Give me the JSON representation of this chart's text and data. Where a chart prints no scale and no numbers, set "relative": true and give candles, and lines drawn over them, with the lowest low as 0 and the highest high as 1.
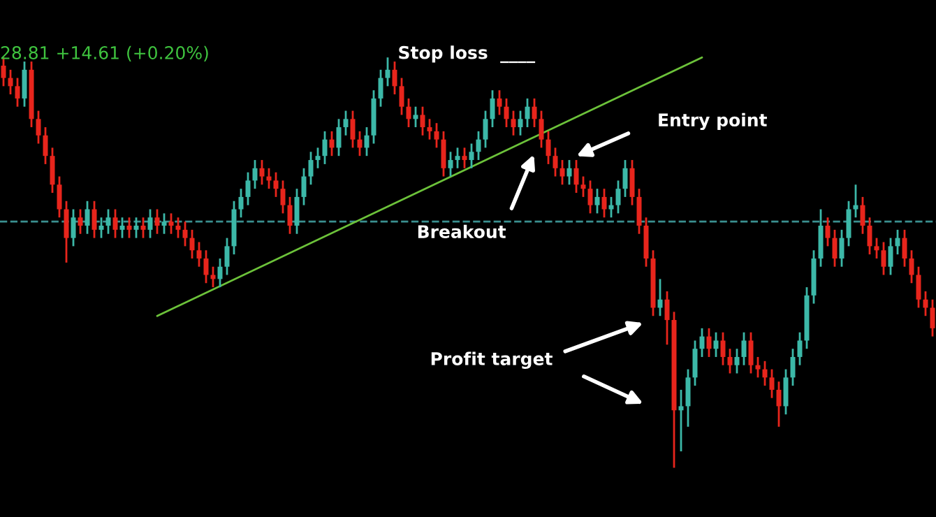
{
  "chart_data": {
    "type": "candlestick",
    "relative": true,
    "categories": [
      null,
      null,
      null,
      null,
      null,
      null,
      null,
      null,
      null,
      null,
      null,
      null,
      null,
      null,
      null,
      null,
      null,
      null,
      null,
      null,
      null,
      null,
      null,
      null,
      null,
      null,
      null,
      null,
      null,
      null,
      null,
      null,
      null,
      null,
      null,
      null,
      null,
      null,
      null,
      null,
      null,
      null,
      null,
      null,
      null,
      null,
      null,
      null,
      null,
      null,
      null,
      null,
      null,
      null,
      null,
      null,
      null,
      null,
      null,
      null,
      null,
      null,
      null,
      null,
      null,
      null,
      null,
      null,
      null,
      null,
      null,
      null,
      null,
      null,
      null,
      null,
      null,
      null,
      null,
      null,
      null,
      null,
      null,
      null,
      null,
      null,
      null,
      null,
      null,
      null,
      null,
      null,
      null,
      null,
      null,
      null,
      null,
      null,
      null,
      null,
      null,
      null,
      null,
      null,
      null,
      null,
      null,
      null,
      null,
      null,
      null,
      null,
      null,
      null,
      null,
      null,
      null,
      null,
      null,
      null,
      null,
      null,
      null,
      null,
      null,
      null,
      null,
      null,
      null,
      null,
      null,
      null,
      null,
      null
    ],
    "colors": [
      "#e8251c",
      "#e8251c",
      "#e8251c",
      "#3cb8a8",
      "#e8251c",
      "#e8251c",
      "#e8251c",
      "#e8251c",
      "#e8251c",
      "#e8251c",
      "#3cb8a8",
      "#e8251c",
      "#3cb8a8",
      "#e8251c",
      "#3cb8a8",
      "#3cb8a8",
      "#e8251c",
      "#3cb8a8",
      "#e8251c",
      "#3cb8a8",
      "#e8251c",
      "#3cb8a8",
      "#e8251c",
      "#3cb8a8",
      "#e8251c",
      "#e8251c",
      "#e8251c",
      "#e8251c",
      "#e8251c",
      "#e8251c",
      "#e8251c",
      "#3cb8a8",
      "#3cb8a8",
      "#3cb8a8",
      "#3cb8a8",
      "#3cb8a8",
      "#3cb8a8",
      "#e8251c",
      "#e8251c",
      "#e8251c",
      "#e8251c",
      "#e8251c",
      "#3cb8a8",
      "#3cb8a8",
      "#3cb8a8",
      "#3cb8a8",
      "#3cb8a8",
      "#e8251c",
      "#3cb8a8",
      "#3cb8a8",
      "#e8251c",
      "#e8251c",
      "#3cb8a8",
      "#3cb8a8",
      "#3cb8a8",
      "#3cb8a8",
      "#e8251c",
      "#e8251c",
      "#e8251c",
      "#3cb8a8",
      "#e8251c",
      "#e8251c",
      "#e8251c",
      "#e8251c",
      "#3cb8a8",
      "#3cb8a8",
      "#e8251c",
      "#3cb8a8",
      "#3cb8a8",
      "#3cb8a8",
      "#3cb8a8",
      "#e8251c",
      "#e8251c",
      "#e8251c",
      "#3cb8a8",
      "#3cb8a8",
      "#e8251c",
      "#e8251c",
      "#e8251c",
      "#e8251c",
      "#e8251c",
      "#3cb8a8",
      "#e8251c",
      "#e8251c",
      "#e8251c",
      "#3cb8a8",
      "#e8251c",
      "#3cb8a8",
      "#3cb8a8",
      "#3cb8a8",
      "#e8251c",
      "#e8251c",
      "#e8251c",
      "#e8251c",
      "#3cb8a8",
      "#e8251c",
      "#e8251c",
      "#3cb8a8",
      "#3cb8a8",
      "#3cb8a8",
      "#3cb8a8",
      "#e8251c",
      "#3cb8a8",
      "#e8251c",
      "#e8251c",
      "#3cb8a8",
      "#3cb8a8",
      "#e8251c",
      "#e8251c",
      "#e8251c",
      "#e8251c",
      "#e8251c",
      "#3cb8a8",
      "#3cb8a8",
      "#3cb8a8",
      "#3cb8a8",
      "#3cb8a8",
      "#3cb8a8",
      "#e8251c",
      "#e8251c",
      "#3cb8a8",
      "#3cb8a8",
      "#3cb8a8",
      "#e8251c",
      "#e8251c",
      "#e8251c",
      "#e8251c",
      "#3cb8a8",
      "#3cb8a8",
      "#e8251c",
      "#e8251c",
      "#e8251c",
      "#e8251c",
      "#e8251c"
    ],
    "ohlc": [
      [
        0.98,
        1.0,
        0.93,
        0.95
      ],
      [
        0.95,
        0.97,
        0.91,
        0.93
      ],
      [
        0.93,
        0.95,
        0.88,
        0.9
      ],
      [
        0.9,
        0.99,
        0.88,
        0.97
      ],
      [
        0.97,
        0.99,
        0.83,
        0.85
      ],
      [
        0.85,
        0.87,
        0.79,
        0.81
      ],
      [
        0.81,
        0.83,
        0.74,
        0.76
      ],
      [
        0.76,
        0.78,
        0.67,
        0.69
      ],
      [
        0.69,
        0.71,
        0.61,
        0.63
      ],
      [
        0.63,
        0.65,
        0.5,
        0.56
      ],
      [
        0.56,
        0.63,
        0.54,
        0.61
      ],
      [
        0.61,
        0.63,
        0.57,
        0.59
      ],
      [
        0.59,
        0.65,
        0.57,
        0.63
      ],
      [
        0.63,
        0.65,
        0.56,
        0.58
      ],
      [
        0.58,
        0.61,
        0.56,
        0.59
      ],
      [
        0.59,
        0.63,
        0.57,
        0.61
      ],
      [
        0.61,
        0.63,
        0.56,
        0.58
      ],
      [
        0.58,
        0.61,
        0.56,
        0.59
      ],
      [
        0.59,
        0.61,
        0.56,
        0.58
      ],
      [
        0.58,
        0.61,
        0.56,
        0.59
      ],
      [
        0.59,
        0.61,
        0.56,
        0.58
      ],
      [
        0.58,
        0.63,
        0.56,
        0.61
      ],
      [
        0.61,
        0.63,
        0.57,
        0.59
      ],
      [
        0.59,
        0.62,
        0.57,
        0.6
      ],
      [
        0.6,
        0.62,
        0.57,
        0.59
      ],
      [
        0.59,
        0.61,
        0.56,
        0.58
      ],
      [
        0.58,
        0.6,
        0.54,
        0.56
      ],
      [
        0.56,
        0.58,
        0.51,
        0.53
      ],
      [
        0.53,
        0.55,
        0.49,
        0.51
      ],
      [
        0.51,
        0.53,
        0.45,
        0.47
      ],
      [
        0.47,
        0.49,
        0.44,
        0.46
      ],
      [
        0.46,
        0.51,
        0.44,
        0.49
      ],
      [
        0.49,
        0.56,
        0.47,
        0.54
      ],
      [
        0.54,
        0.65,
        0.52,
        0.63
      ],
      [
        0.63,
        0.68,
        0.61,
        0.66
      ],
      [
        0.66,
        0.72,
        0.64,
        0.7
      ],
      [
        0.7,
        0.75,
        0.68,
        0.73
      ],
      [
        0.73,
        0.75,
        0.69,
        0.71
      ],
      [
        0.71,
        0.73,
        0.68,
        0.7
      ],
      [
        0.7,
        0.72,
        0.66,
        0.68
      ],
      [
        0.68,
        0.7,
        0.62,
        0.64
      ],
      [
        0.64,
        0.66,
        0.57,
        0.59
      ],
      [
        0.59,
        0.68,
        0.57,
        0.66
      ],
      [
        0.66,
        0.73,
        0.64,
        0.71
      ],
      [
        0.71,
        0.77,
        0.69,
        0.75
      ],
      [
        0.75,
        0.78,
        0.73,
        0.76
      ],
      [
        0.76,
        0.82,
        0.74,
        0.8
      ],
      [
        0.8,
        0.82,
        0.76,
        0.78
      ],
      [
        0.78,
        0.85,
        0.76,
        0.83
      ],
      [
        0.83,
        0.87,
        0.81,
        0.85
      ],
      [
        0.85,
        0.87,
        0.78,
        0.8
      ],
      [
        0.8,
        0.82,
        0.76,
        0.78
      ],
      [
        0.78,
        0.83,
        0.76,
        0.81
      ],
      [
        0.81,
        0.92,
        0.79,
        0.9
      ],
      [
        0.9,
        0.97,
        0.88,
        0.95
      ],
      [
        0.95,
        1.0,
        0.93,
        0.97
      ],
      [
        0.97,
        0.99,
        0.91,
        0.93
      ],
      [
        0.93,
        0.95,
        0.86,
        0.88
      ],
      [
        0.88,
        0.9,
        0.83,
        0.85
      ],
      [
        0.85,
        0.88,
        0.83,
        0.86
      ],
      [
        0.86,
        0.88,
        0.81,
        0.83
      ],
      [
        0.83,
        0.85,
        0.8,
        0.82
      ],
      [
        0.82,
        0.84,
        0.78,
        0.8
      ],
      [
        0.8,
        0.82,
        0.71,
        0.73
      ],
      [
        0.73,
        0.77,
        0.71,
        0.75
      ],
      [
        0.75,
        0.78,
        0.73,
        0.76
      ],
      [
        0.76,
        0.78,
        0.73,
        0.75
      ],
      [
        0.75,
        0.79,
        0.73,
        0.77
      ],
      [
        0.77,
        0.82,
        0.75,
        0.8
      ],
      [
        0.8,
        0.87,
        0.78,
        0.85
      ],
      [
        0.85,
        0.92,
        0.83,
        0.9
      ],
      [
        0.9,
        0.92,
        0.86,
        0.88
      ],
      [
        0.88,
        0.9,
        0.83,
        0.85
      ],
      [
        0.85,
        0.87,
        0.81,
        0.83
      ],
      [
        0.83,
        0.87,
        0.81,
        0.85
      ],
      [
        0.85,
        0.9,
        0.83,
        0.88
      ],
      [
        0.88,
        0.9,
        0.83,
        0.85
      ],
      [
        0.85,
        0.87,
        0.78,
        0.8
      ],
      [
        0.8,
        0.82,
        0.74,
        0.76
      ],
      [
        0.76,
        0.78,
        0.71,
        0.73
      ],
      [
        0.73,
        0.75,
        0.69,
        0.71
      ],
      [
        0.71,
        0.75,
        0.69,
        0.73
      ],
      [
        0.73,
        0.75,
        0.67,
        0.69
      ],
      [
        0.69,
        0.71,
        0.66,
        0.68
      ],
      [
        0.68,
        0.7,
        0.62,
        0.64
      ],
      [
        0.64,
        0.68,
        0.62,
        0.66
      ],
      [
        0.66,
        0.68,
        0.61,
        0.63
      ],
      [
        0.63,
        0.66,
        0.61,
        0.64
      ],
      [
        0.64,
        0.7,
        0.62,
        0.68
      ],
      [
        0.68,
        0.75,
        0.66,
        0.73
      ],
      [
        0.73,
        0.75,
        0.64,
        0.66
      ],
      [
        0.66,
        0.68,
        0.57,
        0.59
      ],
      [
        0.59,
        0.61,
        0.49,
        0.51
      ],
      [
        0.51,
        0.53,
        0.37,
        0.39
      ],
      [
        0.39,
        0.46,
        0.37,
        0.41
      ],
      [
        0.41,
        0.43,
        0.3,
        0.36
      ],
      [
        0.36,
        0.38,
        0.0,
        0.14
      ],
      [
        0.14,
        0.19,
        0.04,
        0.15
      ],
      [
        0.15,
        0.24,
        0.1,
        0.22
      ],
      [
        0.22,
        0.31,
        0.2,
        0.29
      ],
      [
        0.29,
        0.34,
        0.27,
        0.32
      ],
      [
        0.32,
        0.34,
        0.27,
        0.29
      ],
      [
        0.29,
        0.33,
        0.27,
        0.31
      ],
      [
        0.31,
        0.33,
        0.25,
        0.27
      ],
      [
        0.27,
        0.29,
        0.23,
        0.25
      ],
      [
        0.25,
        0.29,
        0.23,
        0.27
      ],
      [
        0.27,
        0.33,
        0.25,
        0.31
      ],
      [
        0.31,
        0.33,
        0.23,
        0.25
      ],
      [
        0.25,
        0.27,
        0.22,
        0.24
      ],
      [
        0.24,
        0.26,
        0.2,
        0.22
      ],
      [
        0.22,
        0.24,
        0.17,
        0.19
      ],
      [
        0.19,
        0.21,
        0.1,
        0.15
      ],
      [
        0.15,
        0.24,
        0.13,
        0.22
      ],
      [
        0.22,
        0.29,
        0.2,
        0.27
      ],
      [
        0.27,
        0.33,
        0.25,
        0.31
      ],
      [
        0.31,
        0.44,
        0.29,
        0.42
      ],
      [
        0.42,
        0.53,
        0.4,
        0.51
      ],
      [
        0.51,
        0.63,
        0.49,
        0.59
      ],
      [
        0.59,
        0.61,
        0.54,
        0.56
      ],
      [
        0.56,
        0.58,
        0.49,
        0.51
      ],
      [
        0.51,
        0.58,
        0.49,
        0.56
      ],
      [
        0.56,
        0.65,
        0.54,
        0.63
      ],
      [
        0.63,
        0.69,
        0.61,
        0.64
      ],
      [
        0.64,
        0.66,
        0.57,
        0.59
      ],
      [
        0.59,
        0.61,
        0.52,
        0.54
      ],
      [
        0.54,
        0.56,
        0.51,
        0.53
      ],
      [
        0.53,
        0.55,
        0.47,
        0.49
      ],
      [
        0.49,
        0.56,
        0.47,
        0.54
      ],
      [
        0.54,
        0.58,
        0.52,
        0.56
      ],
      [
        0.56,
        0.58,
        0.49,
        0.51
      ],
      [
        0.51,
        0.53,
        0.45,
        0.47
      ],
      [
        0.47,
        0.49,
        0.39,
        0.41
      ],
      [
        0.41,
        0.43,
        0.37,
        0.39
      ],
      [
        0.39,
        0.41,
        0.32,
        0.34
      ]
    ],
    "series": [
      {
        "type": "line",
        "color": "#6cc23a",
        "values": [
          null,
          null,
          null,
          null,
          null,
          null,
          null,
          null,
          null,
          null,
          null,
          null,
          null,
          null,
          null,
          null,
          null,
          null,
          null,
          null,
          null,
          null,
          0.37,
          null,
          null,
          null,
          null,
          null,
          null,
          null,
          null,
          null,
          null,
          null,
          null,
          null,
          null,
          null,
          null,
          null,
          null,
          null,
          null,
          null,
          null,
          null,
          null,
          null,
          null,
          null,
          null,
          null,
          null,
          null,
          null,
          null,
          null,
          null,
          null,
          null,
          null,
          null,
          null,
          null,
          null,
          null,
          null,
          null,
          null,
          null,
          null,
          null,
          null,
          null,
          null,
          null,
          null,
          null,
          null,
          null,
          null,
          null,
          null,
          null,
          null,
          null,
          null,
          null,
          null,
          null,
          null,
          null,
          null,
          null,
          null,
          null,
          null,
          null,
          null,
          null,
          1.0,
          null,
          null,
          null,
          null,
          null,
          null,
          null,
          null,
          null,
          null,
          null,
          null,
          null,
          null,
          null,
          null,
          null,
          null,
          null,
          null,
          null,
          null,
          null,
          null,
          null,
          null,
          null,
          null,
          null,
          null,
          null,
          null,
          null
        ]
      }
    ],
    "ref_lines": [
      {
        "axis": "y",
        "value": 0.6,
        "color": "#3a8f8f",
        "line_style": "dashed"
      }
    ],
    "annotations": [
      "28.81 +14.61 (+0.20%)",
      "Stop loss  ____",
      "Breakout",
      "Entry point",
      "Profit target"
    ]
  }
}
